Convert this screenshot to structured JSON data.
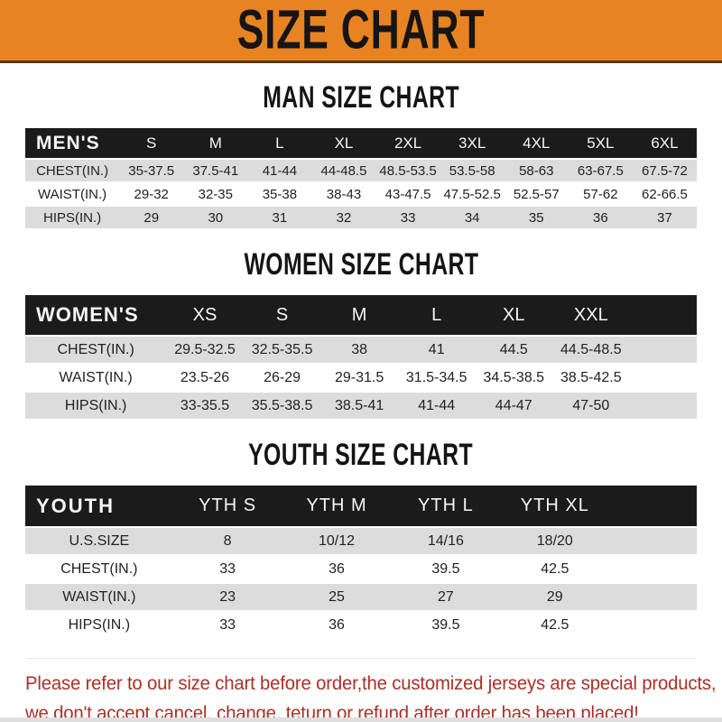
{
  "banner": {
    "title": "SIZE CHART",
    "bg_color": "#E88323",
    "text_color": "#151515"
  },
  "sections": [
    {
      "title": "MAN SIZE CHART",
      "table": {
        "header": [
          "MEN'S",
          "S",
          "M",
          "L",
          "XL",
          "2XL",
          "3XL",
          "4XL",
          "5XL",
          "6XL"
        ],
        "rows": [
          [
            "CHEST(IN.)",
            "35-37.5",
            "37.5-41",
            "41-44",
            "44-48.5",
            "48.5-53.5",
            "53.5-58",
            "58-63",
            "63-67.5",
            "67.5-72"
          ],
          [
            "WAIST(IN.)",
            "29-32",
            "32-35",
            "35-38",
            "38-43",
            "43-47.5",
            "47.5-52.5",
            "52.5-57",
            "57-62",
            "62-66.5"
          ],
          [
            "HIPS(IN.)",
            "29",
            "30",
            "31",
            "32",
            "33",
            "34",
            "35",
            "36",
            "37"
          ]
        ]
      }
    },
    {
      "title": "WOMEN SIZE CHART",
      "table": {
        "header": [
          "WOMEN'S",
          "XS",
          "S",
          "M",
          "L",
          "XL",
          "XXL"
        ],
        "rows": [
          [
            "CHEST(IN.)",
            "29.5-32.5",
            "32.5-35.5",
            "38",
            "41",
            "44.5",
            "44.5-48.5"
          ],
          [
            "WAIST(IN.)",
            "23.5-26",
            "26-29",
            "29-31.5",
            "31.5-34.5",
            "34.5-38.5",
            "38.5-42.5"
          ],
          [
            "HIPS(IN.)",
            "33-35.5",
            "35.5-38.5",
            "38.5-41",
            "41-44",
            "44-47",
            "47-50"
          ]
        ]
      }
    },
    {
      "title": "YOUTH SIZE CHART",
      "table": {
        "header": [
          "YOUTH",
          "YTH S",
          "YTH M",
          "YTH L",
          "YTH XL"
        ],
        "rows": [
          [
            "U.S.SIZE",
            "8",
            "10/12",
            "14/16",
            "18/20"
          ],
          [
            "CHEST(IN.)",
            "33",
            "36",
            "39.5",
            "42.5"
          ],
          [
            "WAIST(IN.)",
            "23",
            "25",
            "27",
            "29"
          ],
          [
            "HIPS(IN.)",
            "33",
            "36",
            "39.5",
            "42.5"
          ]
        ]
      }
    }
  ],
  "footer": {
    "line1": "Please refer to our size chart before order,the customized jerseys are special products,",
    "line2": "we don't accept cancel, change, teturn or refund after order has been placed!",
    "text_color": "#a93128"
  },
  "colors": {
    "header_bar": "#1b1b1b",
    "row_shaded": "#dcdcdc",
    "row_plain": "#ffffff"
  }
}
